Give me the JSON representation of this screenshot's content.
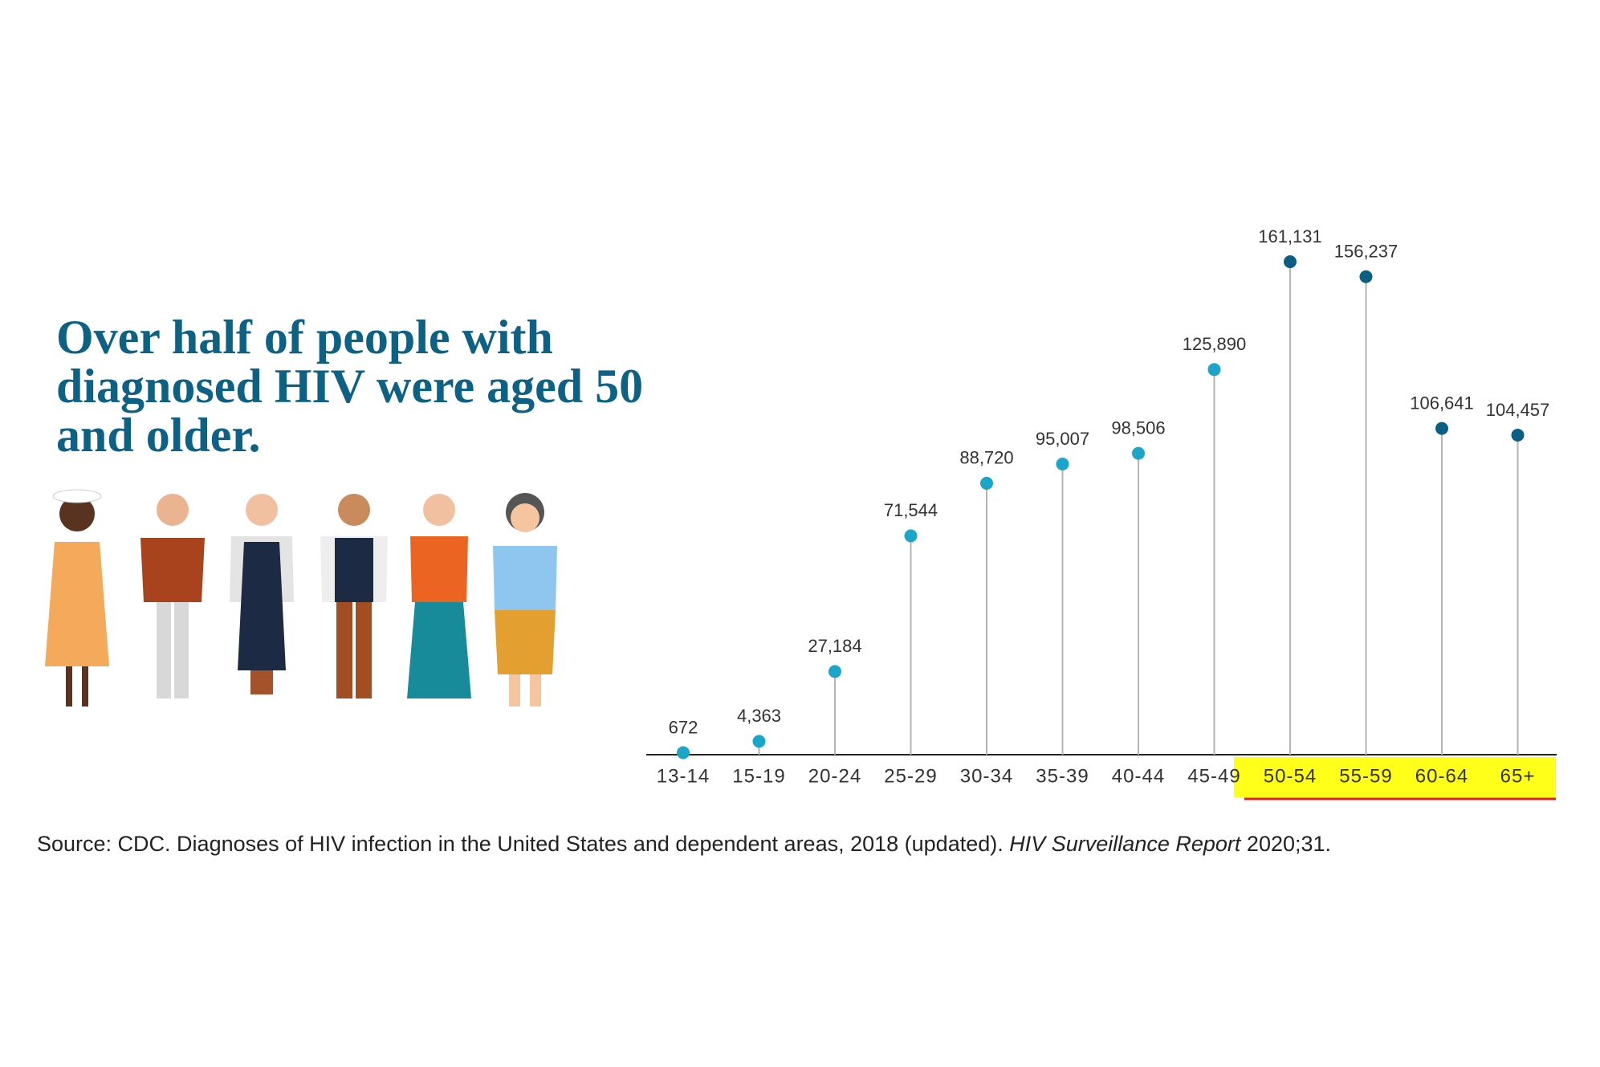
{
  "chart_data": {
    "type": "lollipop",
    "title": "Over half of people with diagnosed HIV were aged 50 and older.",
    "categories": [
      "13-14",
      "15-19",
      "20-24",
      "25-29",
      "30-34",
      "35-39",
      "40-44",
      "45-49",
      "50-54",
      "55-59",
      "60-64",
      "65+"
    ],
    "values": [
      672,
      4363,
      27184,
      71544,
      88720,
      95007,
      98506,
      125890,
      161131,
      156237,
      106641,
      104457
    ],
    "value_labels": [
      "672",
      "4,363",
      "27,184",
      "71,544",
      "88,720",
      "95,007",
      "98,506",
      "125,890",
      "161,131",
      "156,237",
      "106,641",
      "104,457"
    ],
    "colors": [
      "#1ba6c9",
      "#1ba6c9",
      "#1ba6c9",
      "#1ba6c9",
      "#1ba6c9",
      "#1ba6c9",
      "#1ba6c9",
      "#1ba6c9",
      "#0b5f84",
      "#0b5f84",
      "#0b5f84",
      "#0b5f84"
    ],
    "source": [
      "Source: CDC. Diagnoses of HIV infection in the United States and dependent areas, 2018 (updated).",
      "HIV Surveillance Report",
      "2020;31."
    ]
  }
}
